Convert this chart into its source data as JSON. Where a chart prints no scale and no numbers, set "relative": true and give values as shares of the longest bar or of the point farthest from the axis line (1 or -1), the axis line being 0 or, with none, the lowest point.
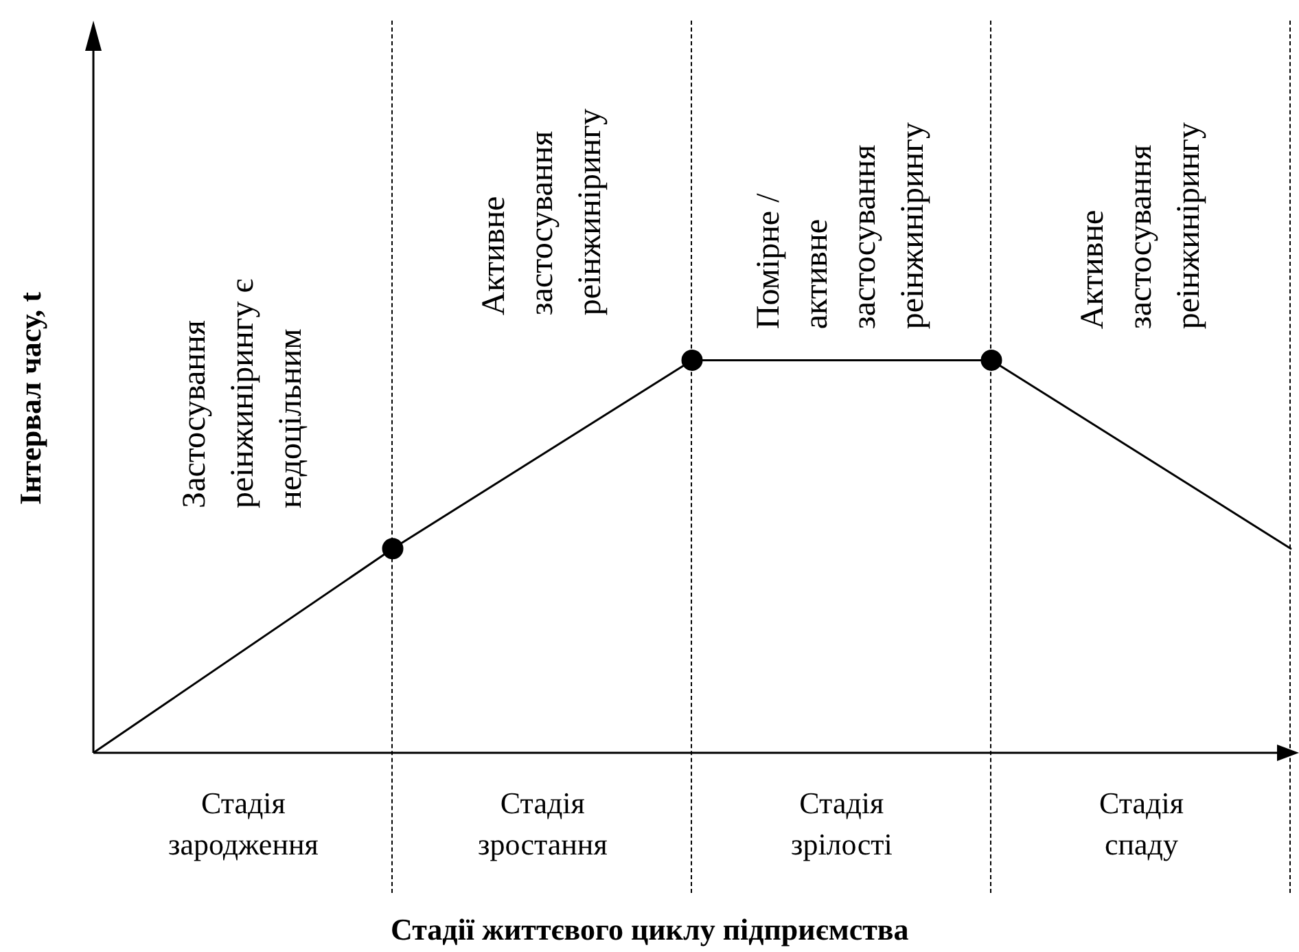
{
  "chart_data": {
    "type": "line",
    "relative": true,
    "ylabel": "Інтервал часу, t",
    "grid": "x",
    "categories": [
      null,
      null,
      null,
      null,
      null
    ],
    "series": [
      {
        "color": "#000000",
        "values": [
          0,
          0.52,
          1,
          1,
          0.52
        ]
      }
    ],
    "marker": "circle",
    "line_style": "solid",
    "annotations": [
      "Застосування\nреінжинірингу є\nнедоцільним",
      "Активне\nзастосування\nреінжинірингу",
      "Помірне /\nактивне\nзастосування\nреінжинірингу",
      "Активне\nзастосування\nреінжинірингу",
      "Стадія\nзародження",
      "Стадія\nзростання",
      "Стадія\nзрілості",
      "Стадія\nспаду",
      "Стадії життєвого циклу підприємства"
    ]
  }
}
